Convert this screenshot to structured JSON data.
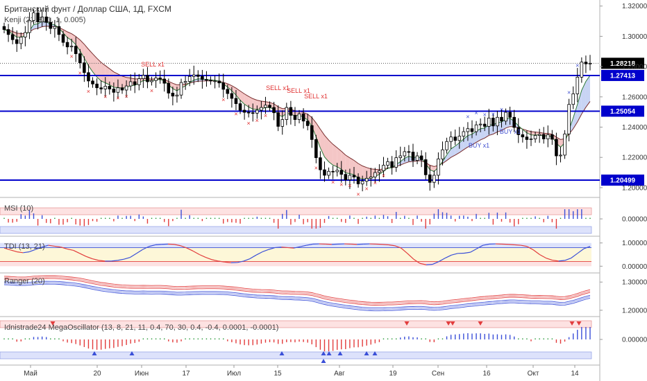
{
  "header": {
    "symbol_title": "Британский фунт / Доллар США, 1Д, FXCM",
    "indicator": "Kenji (21, 8, 1, 1, 0.005)"
  },
  "panes": {
    "msi": "MSI (10)",
    "tdi": "TDI (13, 21)",
    "ranger": "Ranger (20)",
    "mega": "Idnistrade24 MegaOscillator (13, 8, 21, 11, 0.4, 70, 30, 0.4, -0.4, 0.0001, -0.0001)"
  },
  "colors": {
    "bull": "#ffffff",
    "bear": "#000000",
    "level": "#0000cc",
    "cloud_bear": "#f4c6c6",
    "cloud_bull": "#c8d4f4",
    "sell": "#e03030",
    "buy": "#4050d0",
    "line_red": "#e23c3c",
    "line_blue": "#3a4fd8"
  },
  "chart_data": [
    {
      "type": "candlestick",
      "title": "Британский фунт / Доллар США, 1Д, FXCM",
      "x_ticks": [
        "Май",
        "20",
        "Июн",
        "17",
        "Июл",
        "15",
        "Авг",
        "19",
        "Сен",
        "16",
        "Окт",
        "14"
      ],
      "y_ticks": [
        "1.32000",
        "1.30000",
        "1.28000",
        "1.26000",
        "1.24000",
        "1.22000",
        "1.20000"
      ],
      "ylim": [
        1.194,
        1.324
      ],
      "current_price": "1.28218",
      "levels": [
        "1.27413",
        "1.25054",
        "1.20499"
      ],
      "level_values": [
        1.27413,
        1.25054,
        1.20499
      ],
      "close": [
        1.3045,
        1.3012,
        1.2978,
        1.2952,
        1.2995,
        1.3025,
        1.3105,
        1.3155,
        1.3095,
        1.3128,
        1.3092,
        1.3052,
        1.3065,
        1.3012,
        1.296,
        1.293,
        1.2935,
        1.2885,
        1.2825,
        1.276,
        1.2705,
        1.2685,
        1.266,
        1.2652,
        1.267,
        1.2652,
        1.263,
        1.266,
        1.2645,
        1.2672,
        1.27,
        1.268,
        1.272,
        1.2742,
        1.27,
        1.2708,
        1.2725,
        1.2718,
        1.269,
        1.2625,
        1.2605,
        1.2612,
        1.2695,
        1.2702,
        1.2735,
        1.2745,
        1.2735,
        1.2715,
        1.271,
        1.2705,
        1.2705,
        1.2692,
        1.265,
        1.2622,
        1.259,
        1.2555,
        1.2512,
        1.2498,
        1.2495,
        1.2492,
        1.2512,
        1.253,
        1.2545,
        1.253,
        1.2495,
        1.2405,
        1.245,
        1.253,
        1.2478,
        1.245,
        1.2488,
        1.244,
        1.241,
        1.2318,
        1.2198,
        1.2118,
        1.2082,
        1.2108,
        1.2105,
        1.2115,
        1.2088,
        1.2052,
        1.2082,
        1.207,
        1.2025,
        1.2042,
        1.2062,
        1.207,
        1.21,
        1.2112,
        1.2148,
        1.2172,
        1.2135,
        1.2198,
        1.221,
        1.2238,
        1.2235,
        1.218,
        1.221,
        1.2185,
        1.2085,
        1.2035,
        1.2082,
        1.219,
        1.225,
        1.2305,
        1.2335,
        1.2312,
        1.234,
        1.237,
        1.239,
        1.237,
        1.2415,
        1.242,
        1.2405,
        1.246,
        1.2408,
        1.2465,
        1.244,
        1.2498,
        1.2465,
        1.2398,
        1.235,
        1.2335,
        1.2318,
        1.2322,
        1.2345,
        1.2352,
        1.2322,
        1.235,
        1.232,
        1.221,
        1.2215,
        1.2355,
        1.255,
        1.262,
        1.273,
        1.283,
        1.2818,
        1.2822
      ],
      "markers": [
        "SELL x1",
        "SELL x1",
        "SELL x1",
        "SELL x1",
        "BUY x1",
        "BUY x1"
      ]
    },
    {
      "type": "histogram",
      "title": "MSI (10)",
      "y_ticks": [
        "0.00000"
      ]
    },
    {
      "type": "line",
      "title": "TDI (13, 21)",
      "y_ticks": [
        "1.00000",
        "0.00000"
      ],
      "ylim": [
        -0.2,
        1.2
      ],
      "values": [
        0.78,
        0.7,
        0.62,
        0.58,
        0.62,
        0.72,
        0.82,
        0.9,
        0.86,
        0.82,
        0.74,
        0.68,
        0.55,
        0.42,
        0.32,
        0.25,
        0.22,
        0.22,
        0.25,
        0.3,
        0.38,
        0.55,
        0.72,
        0.85,
        0.92,
        0.94,
        0.95,
        0.94,
        0.88,
        0.78,
        0.65,
        0.5,
        0.38,
        0.28,
        0.22,
        0.18,
        0.15,
        0.16,
        0.22,
        0.32,
        0.48,
        0.62,
        0.72,
        0.8,
        0.82,
        0.8,
        0.78,
        0.84,
        0.9,
        0.95,
        0.96,
        0.95,
        0.94,
        0.95,
        0.96,
        0.95,
        0.94,
        0.95,
        0.96,
        0.95,
        0.94,
        0.92,
        0.88,
        0.78,
        0.55,
        0.3,
        0.12,
        0.06,
        0.08,
        0.2,
        0.35,
        0.48,
        0.55,
        0.56,
        0.6,
        0.75,
        0.9,
        0.95,
        0.96,
        0.95,
        0.94,
        0.92,
        0.9,
        0.85,
        0.7,
        0.5,
        0.35,
        0.26,
        0.22,
        0.25,
        0.35,
        0.55,
        0.75,
        0.85
      ]
    },
    {
      "type": "line",
      "title": "Ranger (20)",
      "y_ticks": [
        "1.30000",
        "1.20000"
      ],
      "ylim": [
        1.185,
        1.325
      ]
    },
    {
      "type": "histogram",
      "title": "Idnistrade24 MegaOscillator (13, 8, 21, 11, 0.4, 70, 30, 0.4, -0.4, 0.0001, -0.0001)",
      "y_ticks": [
        "0.00000"
      ]
    }
  ]
}
